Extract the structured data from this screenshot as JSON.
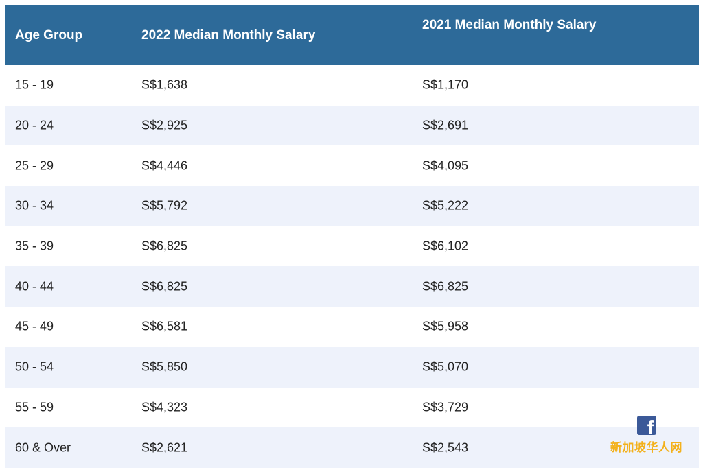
{
  "table": {
    "headers": {
      "age_group": "Age Group",
      "salary_2022": "2022 Median Monthly Salary",
      "salary_2021": "2021 Median Monthly Salary"
    },
    "rows": [
      {
        "age": "15 - 19",
        "y2022": "S$1,638",
        "y2021": "S$1,170"
      },
      {
        "age": "20 - 24",
        "y2022": "S$2,925",
        "y2021": "S$2,691"
      },
      {
        "age": "25 - 29",
        "y2022": "S$4,446",
        "y2021": "S$4,095"
      },
      {
        "age": "30 - 34",
        "y2022": "S$5,792",
        "y2021": "S$5,222"
      },
      {
        "age": "35 - 39",
        "y2022": "S$6,825",
        "y2021": "S$6,102"
      },
      {
        "age": "40 - 44",
        "y2022": "S$6,825",
        "y2021": "S$6,825"
      },
      {
        "age": "45 - 49",
        "y2022": "S$6,581",
        "y2021": "S$5,958"
      },
      {
        "age": "50 - 54",
        "y2022": "S$5,850",
        "y2021": "S$5,070"
      },
      {
        "age": "55 - 59",
        "y2022": "S$4,323",
        "y2021": "S$3,729"
      },
      {
        "age": "60 & Over",
        "y2022": "S$2,621",
        "y2021": "S$2,543"
      }
    ]
  },
  "watermark": {
    "icon": "facebook-icon",
    "icon_letter": "f",
    "text": "新加坡华人网"
  },
  "colors": {
    "header_bg": "#2d6a99",
    "header_text": "#ffffff",
    "alt_row_bg": "#eef2fb",
    "watermark_text": "#f3b11c",
    "facebook_blue": "#3b5998"
  }
}
